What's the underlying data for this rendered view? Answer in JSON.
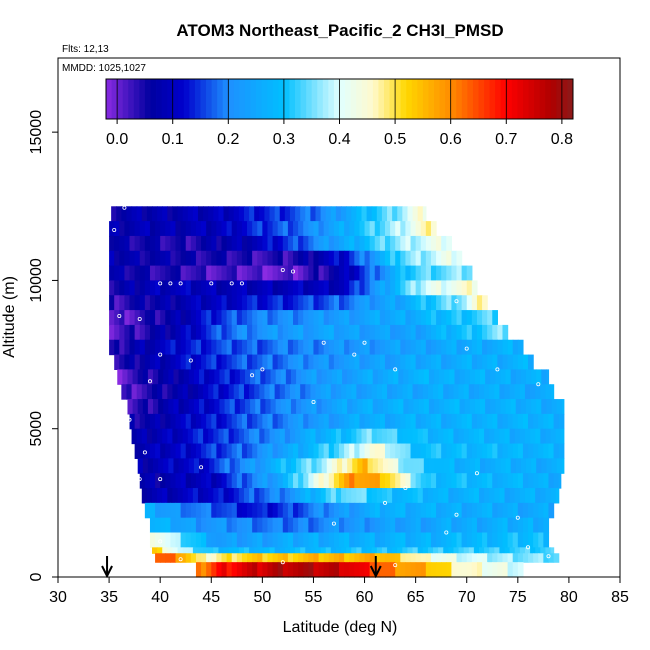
{
  "chart_data": {
    "type": "heatmap",
    "title": "ATOM3 Northeast_Pacific_2 CH3I_PMSD",
    "flights_text": "Flts: 12,13",
    "dates_text": "MMDD: 1025,1027",
    "xlabel": "Latitude (deg N)",
    "ylabel": "Altitude (m)",
    "xlim": [
      30,
      85
    ],
    "ylim": [
      0,
      17500
    ],
    "x_ticks": [
      "30",
      "35",
      "40",
      "45",
      "50",
      "55",
      "60",
      "65",
      "70",
      "75",
      "80",
      "85"
    ],
    "y_ticks": [
      "0",
      "5000",
      "10000",
      "15000"
    ],
    "y_tick_values": [
      0,
      5000,
      10000,
      15000
    ],
    "colorbar": {
      "min": -0.02,
      "max": 0.82,
      "ticks": [
        "0.0",
        "0.1",
        "0.2",
        "0.3",
        "0.4",
        "0.5",
        "0.6",
        "0.7",
        "0.8"
      ],
      "tick_values": [
        0.0,
        0.1,
        0.2,
        0.3,
        0.4,
        0.5,
        0.6,
        0.7,
        0.8
      ],
      "colors": [
        "#8a2be2",
        "#0000a0",
        "#0000cd",
        "#1e90ff",
        "#00bfff",
        "#e0ffff",
        "#fffacd",
        "#ffd700",
        "#ff8c00",
        "#ff0000",
        "#b00000",
        "#8b1a1a"
      ],
      "color_stops": [
        -0.02,
        0.06,
        0.12,
        0.2,
        0.3,
        0.4,
        0.46,
        0.52,
        0.6,
        0.7,
        0.78,
        0.82
      ]
    },
    "lat_bins": [
      34.8,
      80.0
    ],
    "alt_bins": [
      0,
      12500
    ],
    "bands": [
      {
        "alt": [
          12000,
          12500
        ],
        "lat": [
          35.2,
          66.0
        ],
        "keys": [
          [
            35,
            0.07
          ],
          [
            45,
            0.09
          ],
          [
            55,
            0.18
          ],
          [
            62,
            0.33
          ],
          [
            66,
            0.45
          ]
        ]
      },
      {
        "alt": [
          11500,
          12000
        ],
        "lat": [
          35.0,
          67.0
        ],
        "keys": [
          [
            35,
            0.08
          ],
          [
            45,
            0.09
          ],
          [
            55,
            0.2
          ],
          [
            62,
            0.35
          ],
          [
            67,
            0.48
          ]
        ]
      },
      {
        "alt": [
          11000,
          11500
        ],
        "lat": [
          35.0,
          68.5
        ],
        "keys": [
          [
            35,
            0.07
          ],
          [
            42,
            0.04
          ],
          [
            50,
            0.1
          ],
          [
            58,
            0.25
          ],
          [
            64,
            0.38
          ],
          [
            68,
            0.42
          ]
        ]
      },
      {
        "alt": [
          10500,
          11000
        ],
        "lat": [
          35.0,
          69.5
        ],
        "keys": [
          [
            35,
            0.08
          ],
          [
            45,
            0.05
          ],
          [
            52,
            0.03
          ],
          [
            58,
            0.12
          ],
          [
            64,
            0.35
          ],
          [
            69,
            0.42
          ]
        ]
      },
      {
        "alt": [
          10000,
          10500
        ],
        "lat": [
          35.0,
          70.5
        ],
        "keys": [
          [
            35,
            0.07
          ],
          [
            45,
            0.02
          ],
          [
            53,
            0.0
          ],
          [
            58,
            0.08
          ],
          [
            65,
            0.33
          ],
          [
            70,
            0.36
          ]
        ]
      },
      {
        "alt": [
          9500,
          10000
        ],
        "lat": [
          35.0,
          71.0
        ],
        "keys": [
          [
            35,
            0.05
          ],
          [
            40,
            0.1
          ],
          [
            48,
            0.09
          ],
          [
            58,
            0.1
          ],
          [
            66,
            0.4
          ],
          [
            71,
            0.45
          ]
        ]
      },
      {
        "alt": [
          9000,
          9500
        ],
        "lat": [
          35.0,
          72.0
        ],
        "keys": [
          [
            35,
            0.03
          ],
          [
            40,
            0.07
          ],
          [
            48,
            0.12
          ],
          [
            56,
            0.16
          ],
          [
            64,
            0.26
          ],
          [
            70,
            0.38
          ],
          [
            72,
            0.5
          ]
        ]
      },
      {
        "alt": [
          8500,
          9000
        ],
        "lat": [
          35.0,
          73.0
        ],
        "keys": [
          [
            35,
            0.0
          ],
          [
            40,
            0.05
          ],
          [
            48,
            0.18
          ],
          [
            56,
            0.22
          ],
          [
            64,
            0.26
          ],
          [
            72,
            0.33
          ]
        ]
      },
      {
        "alt": [
          8000,
          8500
        ],
        "lat": [
          35.0,
          74.0
        ],
        "keys": [
          [
            35,
            0.01
          ],
          [
            40,
            0.06
          ],
          [
            48,
            0.2
          ],
          [
            56,
            0.24
          ],
          [
            64,
            0.23
          ],
          [
            70,
            0.3
          ],
          [
            74,
            0.36
          ]
        ]
      },
      {
        "alt": [
          7500,
          8000
        ],
        "lat": [
          35.0,
          75.5
        ],
        "keys": [
          [
            35,
            0.02
          ],
          [
            38,
            0.08
          ],
          [
            45,
            0.15
          ],
          [
            55,
            0.2
          ],
          [
            65,
            0.24
          ],
          [
            75,
            0.27
          ]
        ]
      },
      {
        "alt": [
          7000,
          7500
        ],
        "lat": [
          35.5,
          76.5
        ],
        "keys": [
          [
            35,
            0.02
          ],
          [
            39,
            0.08
          ],
          [
            45,
            0.14
          ],
          [
            55,
            0.21
          ],
          [
            65,
            0.25
          ],
          [
            76,
            0.27
          ]
        ]
      },
      {
        "alt": [
          6500,
          7000
        ],
        "lat": [
          35.8,
          78.0
        ],
        "keys": [
          [
            36,
            0.01
          ],
          [
            40,
            0.06
          ],
          [
            45,
            0.12
          ],
          [
            55,
            0.22
          ],
          [
            65,
            0.27
          ],
          [
            78,
            0.26
          ]
        ]
      },
      {
        "alt": [
          6000,
          6500
        ],
        "lat": [
          36.2,
          78.5
        ],
        "keys": [
          [
            36,
            0.01
          ],
          [
            40,
            0.05
          ],
          [
            48,
            0.15
          ],
          [
            58,
            0.24
          ],
          [
            70,
            0.26
          ],
          [
            78,
            0.25
          ]
        ]
      },
      {
        "alt": [
          5500,
          6000
        ],
        "lat": [
          36.8,
          79.5
        ],
        "keys": [
          [
            37,
            0.02
          ],
          [
            41,
            0.08
          ],
          [
            50,
            0.18
          ],
          [
            60,
            0.26
          ],
          [
            70,
            0.27
          ],
          [
            79,
            0.26
          ]
        ]
      },
      {
        "alt": [
          5000,
          5500
        ],
        "lat": [
          37.0,
          79.5
        ],
        "keys": [
          [
            37,
            0.05
          ],
          [
            42,
            0.1
          ],
          [
            50,
            0.18
          ],
          [
            60,
            0.26
          ],
          [
            70,
            0.27
          ],
          [
            79,
            0.27
          ]
        ]
      },
      {
        "alt": [
          4500,
          5000
        ],
        "lat": [
          37.2,
          79.5
        ],
        "keys": [
          [
            37,
            0.06
          ],
          [
            42,
            0.11
          ],
          [
            50,
            0.19
          ],
          [
            58,
            0.3
          ],
          [
            61,
            0.35
          ],
          [
            66,
            0.28
          ],
          [
            79,
            0.26
          ]
        ]
      },
      {
        "alt": [
          4000,
          4500
        ],
        "lat": [
          37.5,
          79.5
        ],
        "keys": [
          [
            37,
            0.07
          ],
          [
            42,
            0.11
          ],
          [
            50,
            0.2
          ],
          [
            57,
            0.33
          ],
          [
            61,
            0.45
          ],
          [
            65,
            0.3
          ],
          [
            79,
            0.27
          ]
        ]
      },
      {
        "alt": [
          3500,
          4000
        ],
        "lat": [
          37.8,
          79.5
        ],
        "keys": [
          [
            38,
            0.08
          ],
          [
            44,
            0.12
          ],
          [
            50,
            0.24
          ],
          [
            56,
            0.38
          ],
          [
            60,
            0.55
          ],
          [
            64,
            0.36
          ],
          [
            68,
            0.27
          ],
          [
            79,
            0.26
          ]
        ]
      },
      {
        "alt": [
          3000,
          3500
        ],
        "lat": [
          38.0,
          79.2
        ],
        "keys": [
          [
            38,
            0.07
          ],
          [
            45,
            0.1
          ],
          [
            52,
            0.26
          ],
          [
            56,
            0.45
          ],
          [
            59,
            0.6
          ],
          [
            62,
            0.55
          ],
          [
            66,
            0.3
          ],
          [
            79,
            0.26
          ]
        ]
      },
      {
        "alt": [
          2500,
          3000
        ],
        "lat": [
          38.2,
          79.0
        ],
        "keys": [
          [
            38,
            0.08
          ],
          [
            46,
            0.12
          ],
          [
            53,
            0.22
          ],
          [
            58,
            0.36
          ],
          [
            62,
            0.3
          ],
          [
            68,
            0.27
          ],
          [
            79,
            0.26
          ]
        ]
      },
      {
        "alt": [
          2000,
          2500
        ],
        "lat": [
          38.5,
          78.5
        ],
        "keys": [
          [
            38.5,
            0.26
          ],
          [
            44,
            0.18
          ],
          [
            50,
            0.12
          ],
          [
            56,
            0.2
          ],
          [
            62,
            0.27
          ],
          [
            78,
            0.25
          ]
        ]
      },
      {
        "alt": [
          1500,
          2000
        ],
        "lat": [
          39.0,
          78.0
        ],
        "keys": [
          [
            39,
            0.28
          ],
          [
            44,
            0.22
          ],
          [
            52,
            0.18
          ],
          [
            60,
            0.22
          ],
          [
            68,
            0.25
          ],
          [
            78,
            0.27
          ]
        ]
      },
      {
        "alt": [
          1000,
          1500
        ],
        "lat": [
          39.0,
          78.0
        ],
        "keys": [
          [
            39,
            0.48
          ],
          [
            41,
            0.38
          ],
          [
            46,
            0.22
          ],
          [
            55,
            0.26
          ],
          [
            65,
            0.27
          ],
          [
            78,
            0.3
          ]
        ]
      },
      {
        "alt": [
          800,
          1000
        ],
        "lat": [
          39.2,
          78.5
        ],
        "keys": [
          [
            39,
            0.55
          ],
          [
            42,
            0.38
          ],
          [
            45,
            0.3
          ],
          [
            50,
            0.28
          ],
          [
            60,
            0.3
          ],
          [
            68,
            0.32
          ],
          [
            78,
            0.32
          ]
        ]
      },
      {
        "alt": [
          500,
          800
        ],
        "lat": [
          39.5,
          79.0
        ],
        "keys": [
          [
            39.5,
            0.65
          ],
          [
            42,
            0.6
          ],
          [
            44,
            0.45
          ],
          [
            48,
            0.52
          ],
          [
            56,
            0.55
          ],
          [
            62,
            0.56
          ],
          [
            66,
            0.44
          ],
          [
            72,
            0.38
          ],
          [
            79,
            0.34
          ]
        ]
      },
      {
        "alt": [
          0,
          500
        ],
        "lat": [
          43.5,
          75.5
        ],
        "keys": [
          [
            43.5,
            0.58
          ],
          [
            46,
            0.7
          ],
          [
            52,
            0.78
          ],
          [
            58,
            0.76
          ],
          [
            62,
            0.62
          ],
          [
            66,
            0.56
          ],
          [
            70,
            0.45
          ],
          [
            75.5,
            0.4
          ]
        ]
      }
    ],
    "points": [
      [
        36.5,
        12450
      ],
      [
        35.5,
        11700
      ],
      [
        40,
        9900
      ],
      [
        41,
        9900
      ],
      [
        42,
        9900
      ],
      [
        45,
        9900
      ],
      [
        47,
        9900
      ],
      [
        48,
        9900
      ],
      [
        52,
        10350
      ],
      [
        53,
        10300
      ],
      [
        69,
        9300
      ],
      [
        75,
        9000
      ],
      [
        36,
        8800
      ],
      [
        38,
        8700
      ],
      [
        60,
        7900
      ],
      [
        56,
        7900
      ],
      [
        59,
        7500
      ],
      [
        63,
        7000
      ],
      [
        73,
        7000
      ],
      [
        70,
        7700
      ],
      [
        77,
        6500
      ],
      [
        80,
        6400
      ],
      [
        50,
        7000
      ],
      [
        43,
        7300
      ],
      [
        49,
        6800
      ],
      [
        39,
        6600
      ],
      [
        40,
        7500
      ],
      [
        37,
        5300
      ],
      [
        38.5,
        4200
      ],
      [
        55,
        5900
      ],
      [
        44,
        3700
      ],
      [
        40,
        3300
      ],
      [
        38,
        3300
      ],
      [
        64,
        3000
      ],
      [
        71,
        3500
      ],
      [
        62,
        2500
      ],
      [
        69,
        2100
      ],
      [
        75,
        2000
      ],
      [
        57,
        1800
      ],
      [
        68,
        1500
      ],
      [
        79,
        1200
      ],
      [
        76,
        1000
      ],
      [
        78,
        700
      ],
      [
        52,
        500
      ],
      [
        63,
        400
      ],
      [
        42,
        600
      ],
      [
        40,
        1200
      ]
    ],
    "arrows_at_lat": [
      34.8,
      61.1
    ]
  }
}
